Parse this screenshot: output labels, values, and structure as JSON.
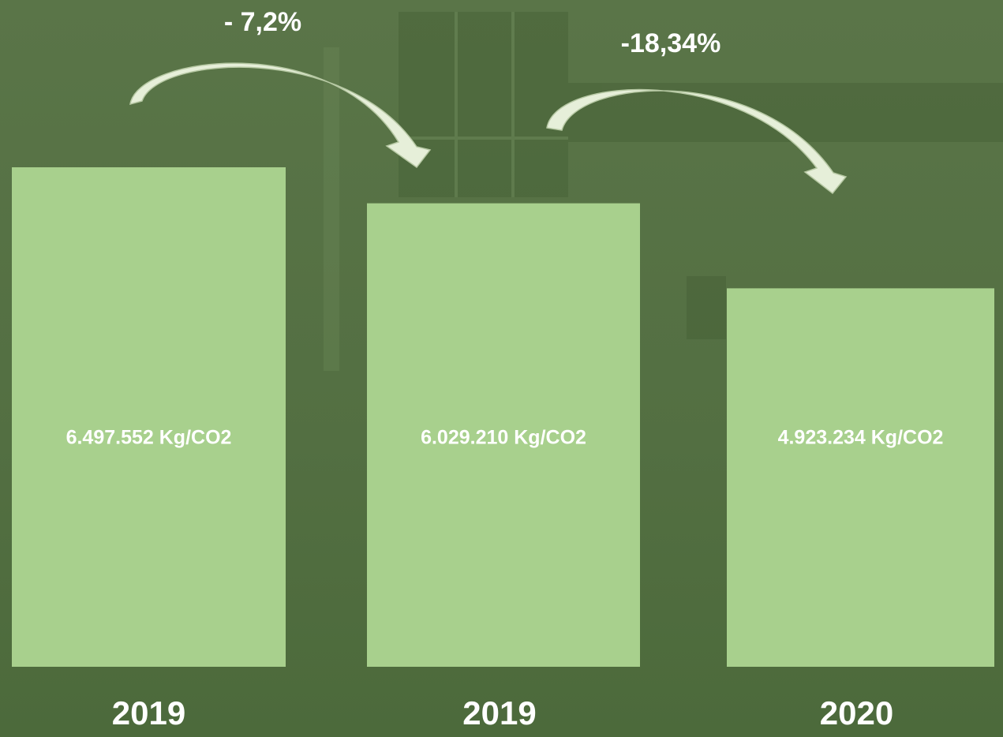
{
  "chart_data": {
    "type": "bar",
    "categories": [
      "2019",
      "2019",
      "2020"
    ],
    "values": [
      6497552,
      6029210,
      4923234
    ],
    "value_labels": [
      "6.497.552 Kg/CO2",
      "6.029.210 Kg/CO2",
      "4.923.234 Kg/CO2"
    ],
    "color": "#a8d08d",
    "annotations": [
      "- 7,2%",
      "-18,34%"
    ]
  }
}
